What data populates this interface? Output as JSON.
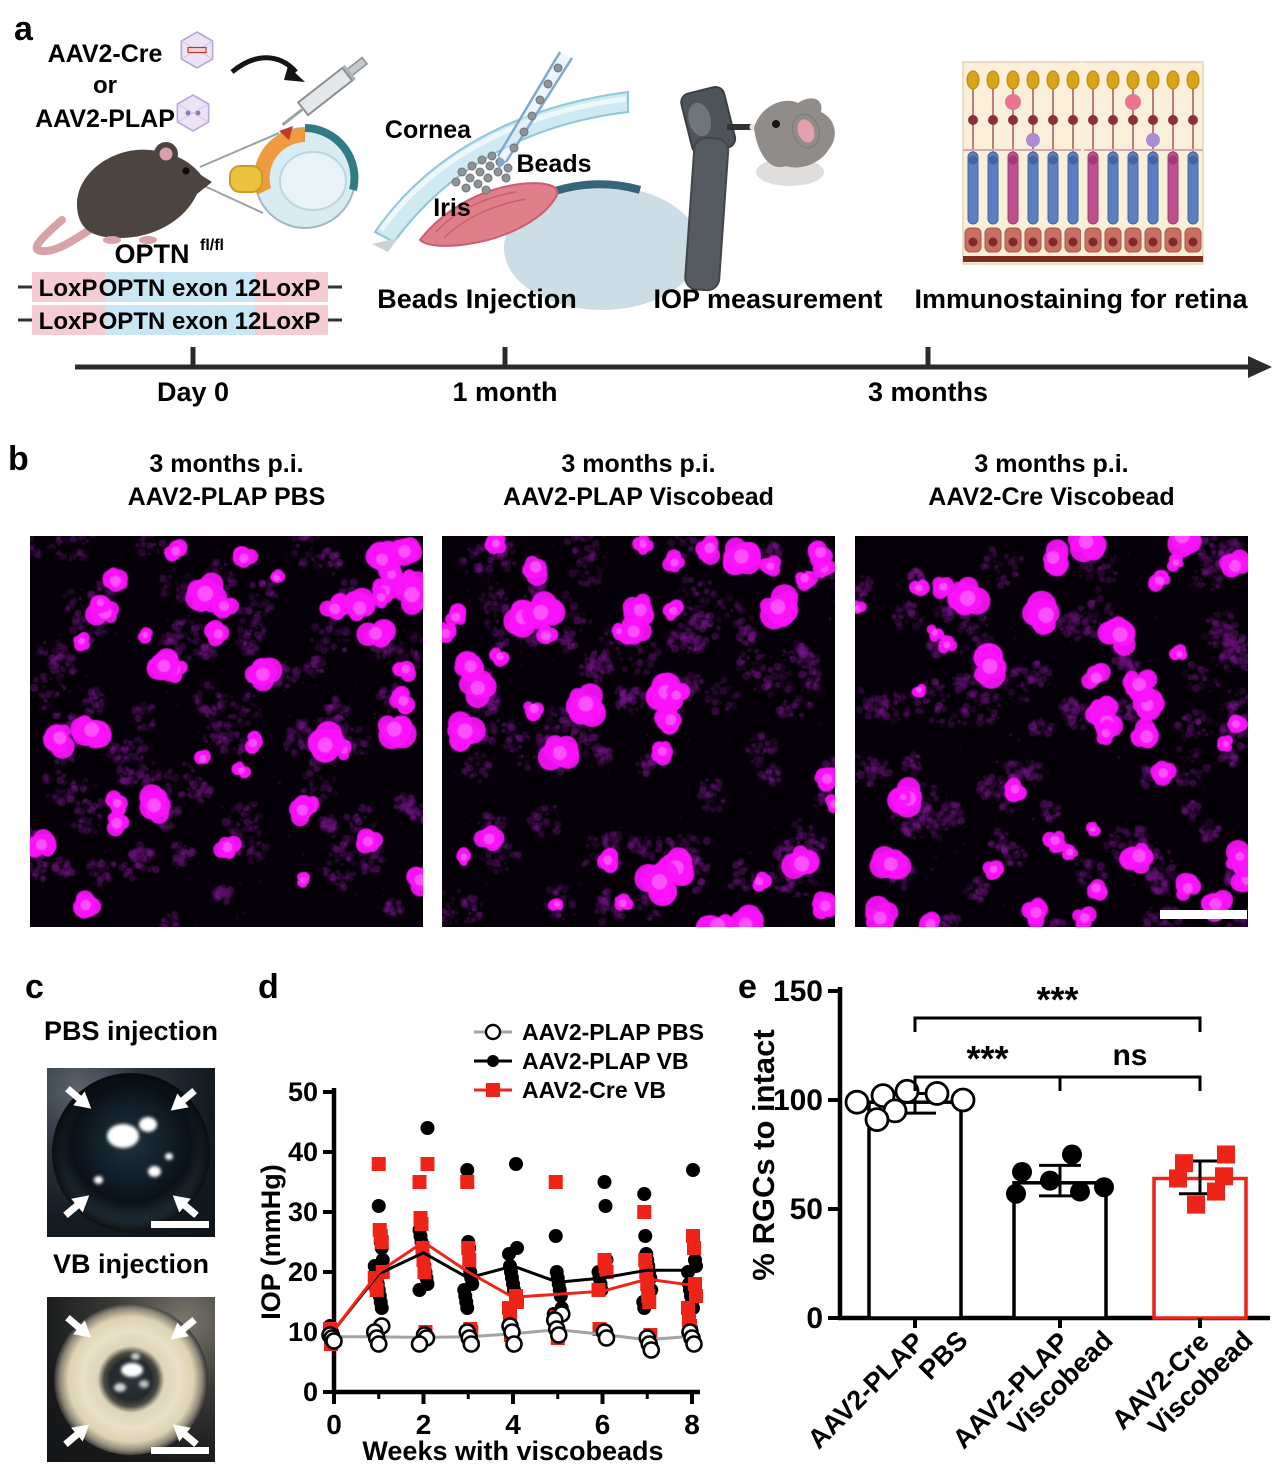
{
  "panel_a": {
    "label": "a",
    "injection": {
      "line1": "AAV2-Cre",
      "line2": "or",
      "line3": "AAV2-PLAP"
    },
    "genotype": {
      "base": "OPTN",
      "sup": "fl/fl"
    },
    "construct": {
      "loxp": "LoxP",
      "exon": "OPTN exon 12"
    },
    "anatomy": {
      "cornea": "Cornea",
      "beads": "Beads",
      "iris": "Iris"
    },
    "captions": {
      "step2": "Beads Injection",
      "step3": "IOP measurement",
      "step4": "Immunostaining for retina"
    },
    "timeline": {
      "labels": [
        "Day 0",
        "1 month",
        "3 months"
      ]
    }
  },
  "panel_b": {
    "label": "b",
    "images": [
      {
        "title_line1": "3 months p.i.",
        "title_line2": "AAV2-PLAP PBS"
      },
      {
        "title_line1": "3 months p.i.",
        "title_line2": "AAV2-PLAP Viscobead"
      },
      {
        "title_line1": "3 months p.i.",
        "title_line2": "AAV2-Cre Viscobead"
      }
    ],
    "render": {
      "background": "#050007",
      "bright_color": "#fb12fb",
      "core_color": "#ff8dff",
      "dim_color": "#7c1690",
      "bright_count": 46,
      "dim_count": 80,
      "speckle_count": 900,
      "seeds": [
        11,
        23,
        37
      ]
    }
  },
  "panel_c": {
    "label": "c",
    "photos": [
      {
        "title": "PBS injection"
      },
      {
        "title": "VB injection"
      }
    ]
  },
  "panel_d": {
    "label": "d"
  },
  "panel_e": {
    "label": "e"
  },
  "chart_data": [
    {
      "id": "iop_timecourse",
      "type": "scatter",
      "xlabel": "Weeks with viscobeads",
      "ylabel": "IOP (mmHg)",
      "xlim": [
        0,
        8
      ],
      "ylim": [
        0,
        50
      ],
      "xticks": [
        0,
        2,
        4,
        6,
        8
      ],
      "xminorticks": [
        1,
        3,
        5,
        7
      ],
      "yticks": [
        0,
        10,
        20,
        30,
        40,
        50
      ],
      "weeks": [
        0,
        1,
        2,
        3,
        4,
        5,
        6,
        7,
        8
      ],
      "grid": false,
      "legend_position": "top-right",
      "series": [
        {
          "name": "AAV2-PLAP PBS",
          "marker": "open-circle",
          "marker_color": "#000000",
          "line_color": "#a3a3a3",
          "mean": [
            9.2,
            9.2,
            9.1,
            9.2,
            9.7,
            10.4,
            9.6,
            8.7,
            9.3
          ],
          "points": [
            [
              9.5,
              9,
              8.5
            ],
            [
              11,
              10,
              9,
              8
            ],
            [
              9.5,
              9,
              8
            ],
            [
              10,
              9,
              8
            ],
            [
              11,
              10,
              8
            ],
            [
              13,
              12,
              10.5,
              9.5
            ],
            [
              10,
              9
            ],
            [
              9,
              8,
              7
            ],
            [
              10,
              9,
              8
            ]
          ]
        },
        {
          "name": "AAV2-PLAP VB",
          "marker": "filled-circle",
          "marker_color": "#000000",
          "line_color": "#000000",
          "mean": [
            10.3,
            19.7,
            23.2,
            19,
            21,
            18.3,
            19,
            20.3,
            20.3
          ],
          "points": [
            [
              11,
              10.5,
              10,
              9.5
            ],
            [
              31,
              27,
              25,
              24,
              22,
              21,
              20,
              19,
              18,
              17,
              16,
              15,
              14
            ],
            [
              44,
              27,
              26,
              25,
              24,
              22,
              21,
              20,
              19,
              18,
              17
            ],
            [
              37,
              25,
              24,
              20,
              19,
              18,
              17,
              16,
              15,
              14
            ],
            [
              38,
              24,
              23,
              21,
              20,
              19,
              18,
              17
            ],
            [
              26,
              20,
              19,
              18,
              17,
              16,
              14,
              13
            ],
            [
              35,
              31,
              22,
              20,
              19,
              18,
              17
            ],
            [
              33,
              26,
              23,
              22,
              21,
              20,
              19,
              17,
              15,
              14
            ],
            [
              37,
              24,
              22,
              21,
              20,
              18,
              17,
              16,
              15,
              14
            ]
          ]
        },
        {
          "name": "AAV2-Cre VB",
          "marker": "filled-square",
          "marker_color": "#ed2417",
          "line_color": "#ed2417",
          "mean": [
            10.3,
            20,
            25,
            20,
            15.8,
            16.3,
            16.8,
            18.8,
            17.8
          ],
          "points": [
            [
              10.5,
              8
            ],
            [
              38,
              27,
              26,
              25,
              20,
              19,
              18,
              17,
              9.5
            ],
            [
              38,
              35,
              29,
              28,
              24,
              22,
              20,
              10
            ],
            [
              35,
              24,
              22,
              10.5,
              10
            ],
            [
              16,
              15,
              14,
              13,
              9.5
            ],
            [
              35,
              12.5,
              9
            ],
            [
              22,
              21,
              20,
              17,
              10.5
            ],
            [
              30,
              22,
              20,
              18,
              16,
              15,
              9.5
            ],
            [
              26,
              24,
              18,
              16,
              14,
              12,
              11,
              10
            ]
          ]
        }
      ]
    },
    {
      "id": "rgc_survival",
      "type": "bar",
      "ylabel": "% RGCs to intact",
      "ylim": [
        0,
        150
      ],
      "yticks": [
        0,
        50,
        100,
        150
      ],
      "categories": [
        [
          "AAV2-PLAP",
          "PBS"
        ],
        [
          "AAV2-PLAP",
          "Viscobead"
        ],
        [
          "AAV2-Cre",
          "Viscobead"
        ]
      ],
      "values": [
        99,
        62,
        64
      ],
      "error_up": [
        4,
        8,
        8
      ],
      "error_down": [
        5,
        6,
        7
      ],
      "bar_fill": "#ffffff",
      "bar_edge_colors": [
        "#000000",
        "#000000",
        "#ed2417"
      ],
      "point_markers": [
        "open-circle",
        "filled-circle",
        "filled-square"
      ],
      "point_colors": [
        "#000000",
        "#000000",
        "#ed2417"
      ],
      "points": [
        [
          104,
          103,
          102,
          100,
          99,
          95,
          91
        ],
        [
          75,
          67,
          63,
          60,
          58,
          57
        ],
        [
          75,
          71,
          65,
          64,
          58,
          52
        ]
      ],
      "point_x_offsets": [
        [
          -8,
          22,
          -32,
          48,
          -58,
          -20,
          -38
        ],
        [
          12,
          -38,
          -10,
          44,
          20,
          -44
        ],
        [
          26,
          -16,
          24,
          -22,
          16,
          -4
        ]
      ],
      "significance": [
        {
          "from": 0,
          "to": 2,
          "label": "***",
          "tier": "top"
        },
        {
          "from": 0,
          "to": 1,
          "label": "***",
          "tier": "mid"
        },
        {
          "from": 1,
          "to": 2,
          "label": "ns",
          "tier": "mid"
        }
      ]
    }
  ]
}
